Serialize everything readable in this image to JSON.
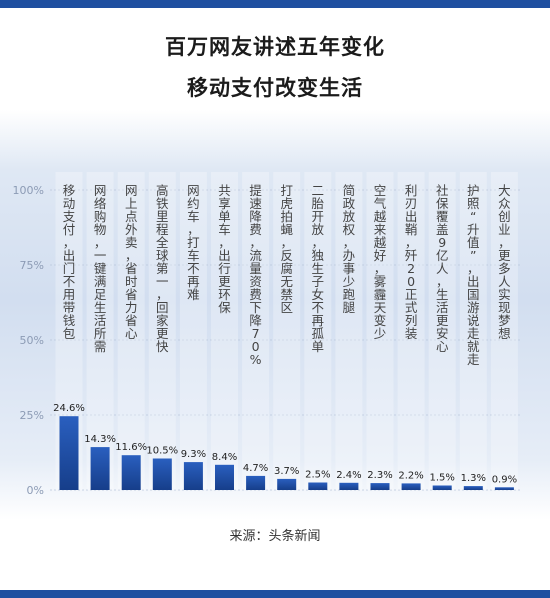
{
  "title": [
    "百万网友讲述五年变化",
    "移动支付改变生活"
  ],
  "source": "来源：头条新闻",
  "colors": {
    "bar_top": "#2a5fbf",
    "bar_bottom": "#163e8a",
    "header_band": "#1f4fa0"
  },
  "chart_data": {
    "type": "bar",
    "ylim": [
      0,
      100
    ],
    "yticks": [
      "100%",
      "75%",
      "50%",
      "25%",
      "0%"
    ],
    "ytick_values": [
      100,
      75,
      50,
      25,
      0
    ],
    "grid": true,
    "categories": [
      [
        "移动支付，",
        "出门不用带钱包"
      ],
      [
        "网络购物，",
        "一键满足生活所需"
      ],
      [
        "网上点外卖，",
        "省时省力省心"
      ],
      [
        "高铁里程全球第一，",
        "回家更快"
      ],
      [
        "网约车，",
        "打车不再难"
      ],
      [
        "共享单车，",
        "出行更环保"
      ],
      [
        "提速降费，",
        "流量资费下降70%"
      ],
      [
        "打虎拍蝇，",
        "反腐无禁区"
      ],
      [
        "二胎开放，",
        "独生子女不再孤单"
      ],
      [
        "简政放权，",
        "办事少跑腿"
      ],
      [
        "空气越来越好，",
        "雾霾天变少"
      ],
      [
        "利刃出鞘，",
        "歼20正式列装"
      ],
      [
        "社保覆盖9亿人，",
        "生活更安心"
      ],
      [
        "护照“升值”，",
        "出国游说走就走"
      ],
      [
        "大众创业，",
        "更多人实现梦想"
      ]
    ],
    "values": [
      24.6,
      14.3,
      11.6,
      10.5,
      9.3,
      8.4,
      4.7,
      3.7,
      2.5,
      2.4,
      2.3,
      2.2,
      1.5,
      1.3,
      0.9
    ],
    "value_labels": [
      "24.6%",
      "14.3%",
      "11.6%",
      "10.5%",
      "9.3%",
      "8.4%",
      "4.7%",
      "3.7%",
      "2.5%",
      "2.4%",
      "2.3%",
      "2.2%",
      "1.5%",
      "1.3%",
      "0.9%"
    ]
  }
}
